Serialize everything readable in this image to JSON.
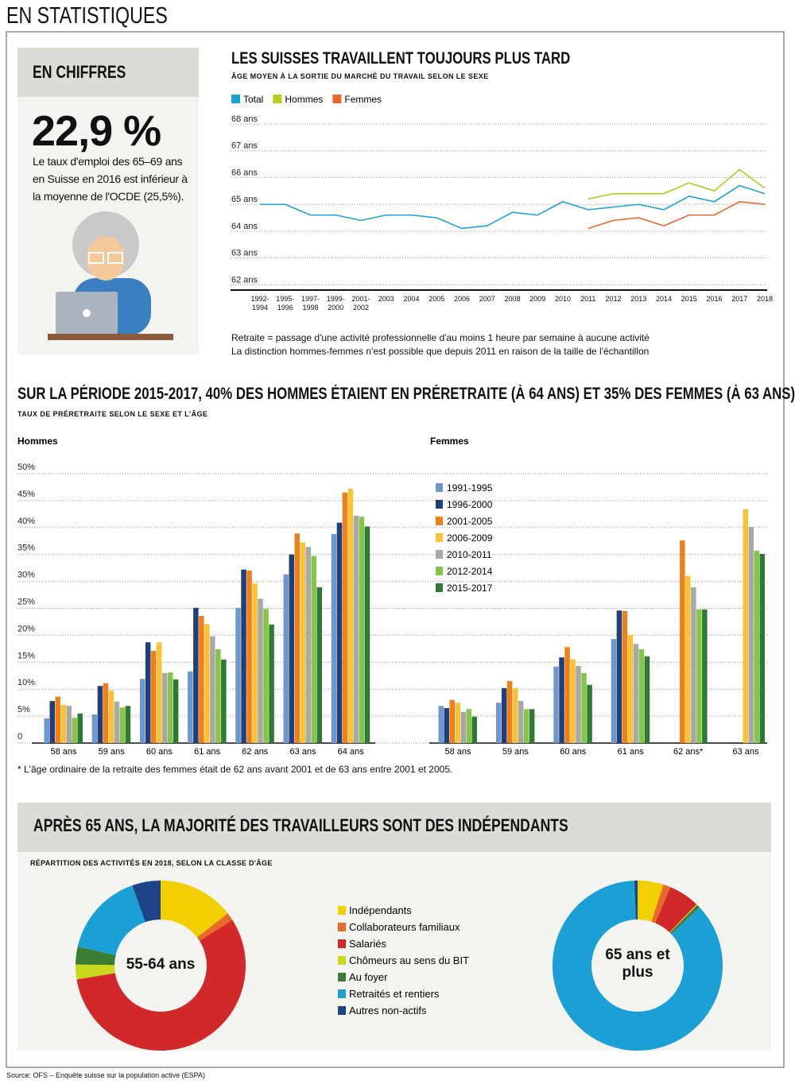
{
  "header": "EN STATISTIQUES",
  "sidebar": {
    "title": "EN CHIFFRES",
    "figure": "22,9 %",
    "text": "Le taux d'emploi des 65–69 ans en Suisse en 2016 est inférieur à la moyenne de l'OCDE (25,5%)."
  },
  "source": "Source: OFS – Enquête suisse sur la population active (ESPA)",
  "chart_data": [
    {
      "type": "line",
      "title": "LES SUISSES TRAVAILLENT TOUJOURS PLUS TARD",
      "subtitle": "ÂGE MOYEN À LA SORTIE DU MARCHÉ DU TRAVAIL SELON LE SEXE",
      "categories": [
        "1992-1994",
        "1995-1996",
        "1997-1998",
        "1999-2000",
        "2001-2002",
        "2003",
        "2004",
        "2005",
        "2006",
        "2007",
        "2008",
        "2009",
        "2010",
        "2011",
        "2012",
        "2013",
        "2014",
        "2015",
        "2016",
        "2017",
        "2018"
      ],
      "series": [
        {
          "name": "Total",
          "color": "#1ba3d6",
          "values": [
            65.0,
            65.0,
            64.6,
            64.6,
            64.4,
            64.6,
            64.6,
            64.5,
            64.1,
            64.2,
            64.7,
            64.6,
            65.1,
            64.8,
            64.9,
            65.0,
            64.8,
            65.3,
            65.1,
            65.7,
            65.4
          ]
        },
        {
          "name": "Hommes",
          "color": "#b5cc18",
          "values": [
            null,
            null,
            null,
            null,
            null,
            null,
            null,
            null,
            null,
            null,
            null,
            null,
            null,
            65.2,
            65.4,
            65.4,
            65.4,
            65.8,
            65.5,
            66.3,
            65.6
          ]
        },
        {
          "name": "Femmes",
          "color": "#e8682a",
          "values": [
            null,
            null,
            null,
            null,
            null,
            null,
            null,
            null,
            null,
            null,
            null,
            null,
            null,
            64.1,
            64.4,
            64.5,
            64.2,
            64.6,
            64.6,
            65.1,
            65.0
          ]
        }
      ],
      "ylim": [
        61.8,
        68
      ],
      "yticks": [
        {
          "value": 62,
          "label": "62 ans"
        },
        {
          "value": 63,
          "label": "63 ans"
        },
        {
          "value": 64,
          "label": "64 ans"
        },
        {
          "value": 65,
          "label": "65 ans"
        },
        {
          "value": 66,
          "label": "66 ans"
        },
        {
          "value": 67,
          "label": "67 ans"
        },
        {
          "value": 68,
          "label": "68 ans"
        }
      ],
      "grid": true,
      "notes": [
        "Retraite = passage d'une activité professionnelle d'au moins 1 heure par semaine à aucune activité",
        "La distinction hommes-femmes n'est possible que depuis 2011 en raison de la taille de l'échantillon"
      ]
    },
    {
      "type": "bar",
      "title": "SUR LA PÉRIODE 2015-2017, 40% DES HOMMES ÉTAIENT EN PRÉRETRAITE (À 64 ANS) ET 35% DES FEMMES (À 63 ANS)",
      "subtitle": "TAUX DE PRÉRETRAITE SELON LE SEXE ET L'ÂGE",
      "series": [
        {
          "name": "1991-1995",
          "color": "#6f97cc"
        },
        {
          "name": "1996-2000",
          "color": "#1f3f7a"
        },
        {
          "name": "2001-2005",
          "color": "#ee7f1a"
        },
        {
          "name": "2006-2009",
          "color": "#f7c335"
        },
        {
          "name": "2010-2011",
          "color": "#a8a8a8"
        },
        {
          "name": "2012-2014",
          "color": "#86c44a"
        },
        {
          "name": "2015-2017",
          "color": "#2e7a34"
        }
      ],
      "panels": [
        {
          "title": "Hommes",
          "categories": [
            "58 ans",
            "59 ans",
            "60 ans",
            "61 ans",
            "62 ans",
            "63 ans",
            "64 ans"
          ],
          "values": [
            [
              4.6,
              5.3,
              11.9,
              13.3,
              25.1,
              31.3,
              38.8
            ],
            [
              7.8,
              10.6,
              18.7,
              25.1,
              32.2,
              35.0,
              40.9
            ],
            [
              8.6,
              11.1,
              17.1,
              23.6,
              32.0,
              38.9,
              46.5
            ],
            [
              7.1,
              9.7,
              18.7,
              22.1,
              29.6,
              37.2,
              47.2
            ],
            [
              6.9,
              7.7,
              13.0,
              19.8,
              26.8,
              36.4,
              42.2
            ],
            [
              4.7,
              6.6,
              13.1,
              17.4,
              24.9,
              34.7,
              42.0
            ],
            [
              5.5,
              6.9,
              11.8,
              15.5,
              22.0,
              28.9,
              40.2
            ]
          ]
        },
        {
          "title": "Femmes",
          "categories": [
            "58 ans",
            "59 ans",
            "60 ans",
            "61 ans",
            "62 ans*",
            "63 ans"
          ],
          "values": [
            [
              6.9,
              7.5,
              14.2,
              19.3,
              null,
              null
            ],
            [
              6.5,
              10.2,
              15.9,
              24.6,
              null,
              null
            ],
            [
              8.0,
              11.5,
              17.8,
              24.5,
              37.6,
              null
            ],
            [
              7.5,
              10.2,
              15.5,
              20.1,
              31.0,
              43.4
            ],
            [
              5.8,
              7.8,
              14.3,
              18.4,
              28.9,
              40.1
            ],
            [
              6.3,
              6.3,
              13.0,
              17.4,
              24.8,
              35.7
            ],
            [
              4.9,
              6.3,
              10.8,
              16.1,
              24.8,
              35.1
            ]
          ]
        }
      ],
      "ylim": [
        0,
        50
      ],
      "yticks": [
        0,
        {
          "value": 5,
          "label": "5%"
        },
        {
          "value": 10,
          "label": "10%"
        },
        {
          "value": 15,
          "label": "15%"
        },
        {
          "value": 20,
          "label": "20%"
        },
        {
          "value": 25,
          "label": "25%"
        },
        {
          "value": 30,
          "label": "30%"
        },
        {
          "value": 35,
          "label": "35%"
        },
        {
          "value": 40,
          "label": "40%"
        },
        {
          "value": 45,
          "label": "45%"
        },
        {
          "value": 50,
          "label": "50%"
        }
      ],
      "grid": true,
      "note": "* L'âge ordinaire de la retraite des femmes était de 62 ans avant 2001 et de 63 ans entre 2001 et 2005."
    },
    {
      "type": "donut",
      "title": "APRÈS 65 ANS, LA MAJORITÉ DES TRAVAILLEURS SONT DES INDÉPENDANTS",
      "subtitle": "RÉPARTITION DES ACTIVITÉS EN 2018, SELON LA CLASSE D'ÂGE",
      "categories": [
        "Indépendants",
        "Collaborateurs familiaux",
        "Salariés",
        "Chômeurs au sens du BIT",
        "Au foyer",
        "Retraités et rentiers",
        "Autres non-actifs"
      ],
      "colors": [
        "#f2cf00",
        "#e8692a",
        "#d3282a",
        "#c8d81c",
        "#3a7d33",
        "#1aa0d4",
        "#1e4587"
      ],
      "groups": [
        {
          "label": "55-64 ans",
          "values": [
            14.5,
            1.5,
            56.4,
            2.8,
            3.4,
            16.0,
            5.4
          ]
        },
        {
          "label": "65 ans et plus",
          "values": [
            4.9,
            1.4,
            5.9,
            0.2,
            0.6,
            86.4,
            0.6
          ]
        }
      ]
    }
  ]
}
